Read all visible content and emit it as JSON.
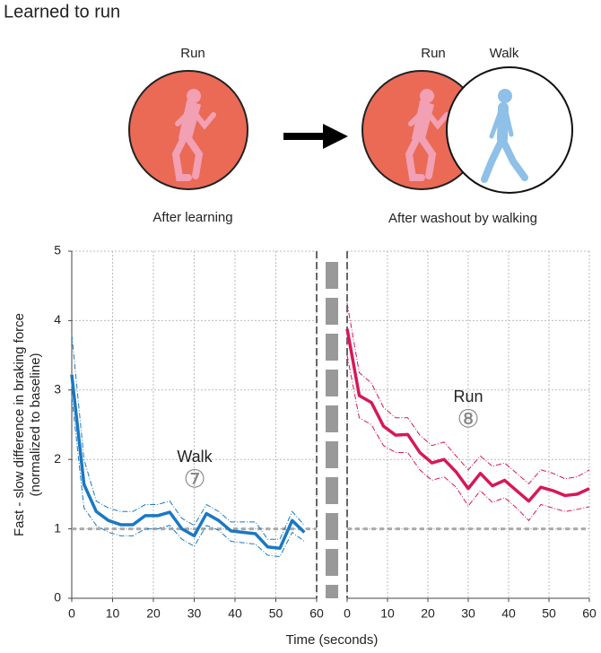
{
  "diagram": {
    "title": "Learned to run",
    "left": {
      "label": "Run",
      "caption": "After learning"
    },
    "right": {
      "labels": [
        "Run",
        "Walk"
      ],
      "caption": "After washout by walking"
    }
  },
  "chart_data": {
    "type": "line",
    "ylabel": [
      "Fast - slow difference in  braking force",
      "(normalized to baseline)"
    ],
    "xlabel": "Time (seconds)",
    "ylim": [
      0,
      5
    ],
    "yticks": [
      0,
      1,
      2,
      3,
      4,
      5
    ],
    "baseline": 1,
    "grid": true,
    "panels": [
      {
        "annotation": "Walk",
        "annotation_number": "⑦",
        "color": "#1a78c2",
        "xlim": [
          0,
          60
        ],
        "xticks": [
          0,
          10,
          20,
          30,
          40,
          50,
          60
        ],
        "x": [
          0,
          3,
          6,
          9,
          12,
          15,
          18,
          21,
          24,
          27,
          30,
          33,
          36,
          39,
          42,
          45,
          48,
          51,
          54,
          57,
          60
        ],
        "mean": [
          3.22,
          1.64,
          1.25,
          1.12,
          1.06,
          1.06,
          1.19,
          1.19,
          1.24,
          1.0,
          0.9,
          1.22,
          1.12,
          0.97,
          0.95,
          0.93,
          0.74,
          0.72,
          1.12,
          0.95,
          null
        ],
        "upper": [
          3.8,
          2.0,
          1.4,
          1.3,
          1.25,
          1.25,
          1.35,
          1.35,
          1.4,
          1.15,
          1.05,
          1.35,
          1.25,
          1.1,
          1.1,
          1.1,
          0.85,
          0.85,
          1.25,
          1.05,
          null
        ],
        "lower": [
          2.9,
          1.3,
          1.05,
          0.95,
          0.9,
          0.9,
          1.0,
          1.0,
          1.05,
          0.85,
          0.75,
          1.05,
          0.98,
          0.82,
          0.8,
          0.78,
          0.62,
          0.6,
          0.95,
          0.82,
          null
        ]
      },
      {
        "annotation": "Run",
        "annotation_number": "⑧",
        "color": "#d6185a",
        "xlim": [
          0,
          60
        ],
        "xticks": [
          0,
          10,
          20,
          30,
          40,
          50,
          60
        ],
        "x": [
          0,
          3,
          6,
          9,
          12,
          15,
          18,
          21,
          24,
          27,
          30,
          33,
          36,
          39,
          42,
          45,
          48,
          51,
          54,
          57,
          60
        ],
        "mean": [
          3.88,
          2.92,
          2.82,
          2.48,
          2.35,
          2.36,
          2.1,
          1.95,
          2.0,
          1.82,
          1.58,
          1.8,
          1.62,
          1.7,
          1.55,
          1.4,
          1.6,
          1.55,
          1.48,
          1.5,
          1.58
        ],
        "upper": [
          4.25,
          3.25,
          3.1,
          2.75,
          2.6,
          2.6,
          2.35,
          2.2,
          2.25,
          2.05,
          1.85,
          2.05,
          1.9,
          1.95,
          1.8,
          1.65,
          1.85,
          1.8,
          1.72,
          1.75,
          1.85
        ],
        "lower": [
          3.5,
          2.6,
          2.5,
          2.2,
          2.1,
          2.1,
          1.85,
          1.7,
          1.75,
          1.6,
          1.33,
          1.55,
          1.38,
          1.45,
          1.3,
          1.12,
          1.35,
          1.3,
          1.25,
          1.28,
          1.32
        ]
      }
    ]
  }
}
